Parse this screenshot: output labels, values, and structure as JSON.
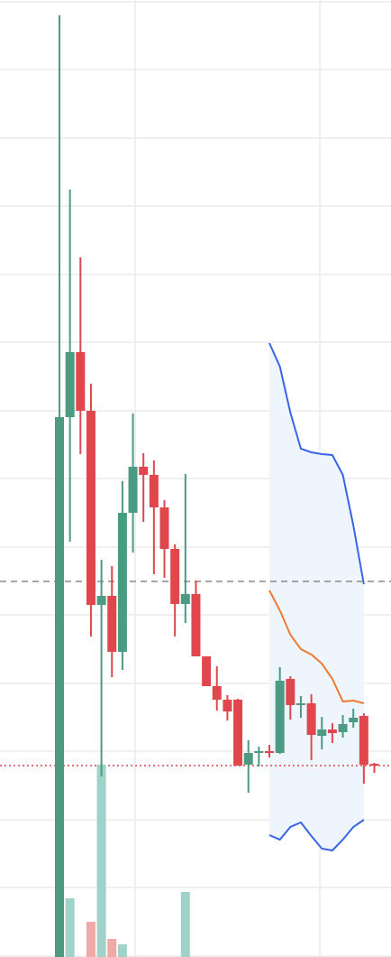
{
  "chart_data": {
    "type": "candlestick",
    "title": "",
    "xlabel": "",
    "ylabel": "",
    "ylim": [
      0,
      1060
    ],
    "volume_ylim": [
      0,
      1060
    ],
    "grid": true,
    "colors": {
      "up": "#4c9a82",
      "down": "#e0474c",
      "volume_up": "#9fd3c9",
      "volume_down": "#efaaa8",
      "band_upper": "#3a64e8",
      "band_middle": "#ee7a31",
      "band_lower": "#3a64e8",
      "band_fill": "#eef5fd",
      "reference_dashed": "#8a8a8a",
      "reference_dotted": "#e0474c",
      "grid": "#ececec"
    },
    "candles": [
      {
        "i": 0,
        "open": 0,
        "high": 1043,
        "low": 0,
        "close": 598,
        "dir": "up"
      },
      {
        "i": 1,
        "open": 598,
        "high": 850,
        "low": 460,
        "close": 670,
        "dir": "up"
      },
      {
        "i": 2,
        "open": 670,
        "high": 775,
        "low": 557,
        "close": 605,
        "dir": "down"
      },
      {
        "i": 3,
        "open": 605,
        "high": 635,
        "low": 355,
        "close": 390,
        "dir": "down"
      },
      {
        "i": 4,
        "open": 390,
        "high": 440,
        "low": 200,
        "close": 400,
        "dir": "up"
      },
      {
        "i": 5,
        "open": 400,
        "high": 433,
        "low": 310,
        "close": 338,
        "dir": "down"
      },
      {
        "i": 6,
        "open": 338,
        "high": 527,
        "low": 318,
        "close": 492,
        "dir": "up"
      },
      {
        "i": 7,
        "open": 492,
        "high": 602,
        "low": 448,
        "close": 543,
        "dir": "up"
      },
      {
        "i": 8,
        "open": 543,
        "high": 558,
        "low": 482,
        "close": 534,
        "dir": "down"
      },
      {
        "i": 9,
        "open": 534,
        "high": 550,
        "low": 424,
        "close": 498,
        "dir": "down"
      },
      {
        "i": 10,
        "open": 498,
        "high": 506,
        "low": 420,
        "close": 452,
        "dir": "down"
      },
      {
        "i": 11,
        "open": 452,
        "high": 457,
        "low": 355,
        "close": 391,
        "dir": "down"
      },
      {
        "i": 12,
        "open": 391,
        "high": 535,
        "low": 370,
        "close": 402,
        "dir": "up"
      },
      {
        "i": 13,
        "open": 402,
        "high": 417,
        "low": 333,
        "close": 333,
        "dir": "down"
      },
      {
        "i": 14,
        "open": 333,
        "high": 333,
        "low": 300,
        "close": 300,
        "dir": "down"
      },
      {
        "i": 15,
        "open": 300,
        "high": 322,
        "low": 273,
        "close": 285,
        "dir": "down"
      },
      {
        "i": 16,
        "open": 285,
        "high": 290,
        "low": 262,
        "close": 272,
        "dir": "down"
      },
      {
        "i": 17,
        "open": 285,
        "high": 286,
        "low": 212,
        "close": 212,
        "dir": "down"
      },
      {
        "i": 18,
        "open": 213,
        "high": 240,
        "low": 182,
        "close": 226,
        "dir": "up"
      },
      {
        "i": 19,
        "open": 227,
        "high": 233,
        "low": 211,
        "close": 228,
        "dir": "up"
      },
      {
        "i": 20,
        "open": 228,
        "high": 235,
        "low": 221,
        "close": 227,
        "dir": "down"
      },
      {
        "i": 21,
        "open": 226,
        "high": 321,
        "low": 225,
        "close": 306,
        "dir": "up"
      },
      {
        "i": 22,
        "open": 308,
        "high": 311,
        "low": 263,
        "close": 279,
        "dir": "down"
      },
      {
        "i": 23,
        "open": 281,
        "high": 289,
        "low": 265,
        "close": 281,
        "dir": "up"
      },
      {
        "i": 24,
        "open": 281,
        "high": 291,
        "low": 218,
        "close": 246,
        "dir": "down"
      },
      {
        "i": 25,
        "open": 245,
        "high": 266,
        "low": 230,
        "close": 252,
        "dir": "up"
      },
      {
        "i": 26,
        "open": 252,
        "high": 259,
        "low": 237,
        "close": 248,
        "dir": "down"
      },
      {
        "i": 27,
        "open": 249,
        "high": 268,
        "low": 243,
        "close": 258,
        "dir": "up"
      },
      {
        "i": 28,
        "open": 260,
        "high": 275,
        "low": 254,
        "close": 265,
        "dir": "up"
      },
      {
        "i": 29,
        "open": 267,
        "high": 270,
        "low": 192,
        "close": 213,
        "dir": "down"
      },
      {
        "i": 30,
        "open": 214,
        "high": 215,
        "low": 204,
        "close": 212,
        "dir": "down"
      }
    ],
    "volume": [
      {
        "i": 0,
        "value": 0,
        "dir": "up"
      },
      {
        "i": 1,
        "value": 65,
        "dir": "up"
      },
      {
        "i": 3,
        "value": 39,
        "dir": "down"
      },
      {
        "i": 4,
        "value": 213,
        "dir": "up"
      },
      {
        "i": 5,
        "value": 20,
        "dir": "down"
      },
      {
        "i": 6,
        "value": 14,
        "dir": "up"
      },
      {
        "i": 12,
        "value": 72,
        "dir": "up"
      }
    ],
    "bands": {
      "start_index": 20,
      "upper": [
        680,
        654,
        603,
        563,
        559,
        557,
        556,
        534,
        478,
        413
      ],
      "middle": [
        406,
        384,
        357,
        341,
        335,
        325,
        308,
        283,
        284,
        281
      ],
      "lower": [
        135,
        130,
        144,
        149,
        134,
        120,
        118,
        130,
        144,
        152
      ]
    },
    "reference_lines": [
      {
        "style": "dashed",
        "value": 416
      },
      {
        "style": "dotted",
        "value": 212
      }
    ],
    "gridlines": [
      1058,
      983,
      907,
      832,
      756,
      681,
      605,
      530,
      454,
      379,
      303,
      228,
      152,
      77,
      1
    ],
    "vertical_gridlines": [
      150,
      355
    ]
  }
}
